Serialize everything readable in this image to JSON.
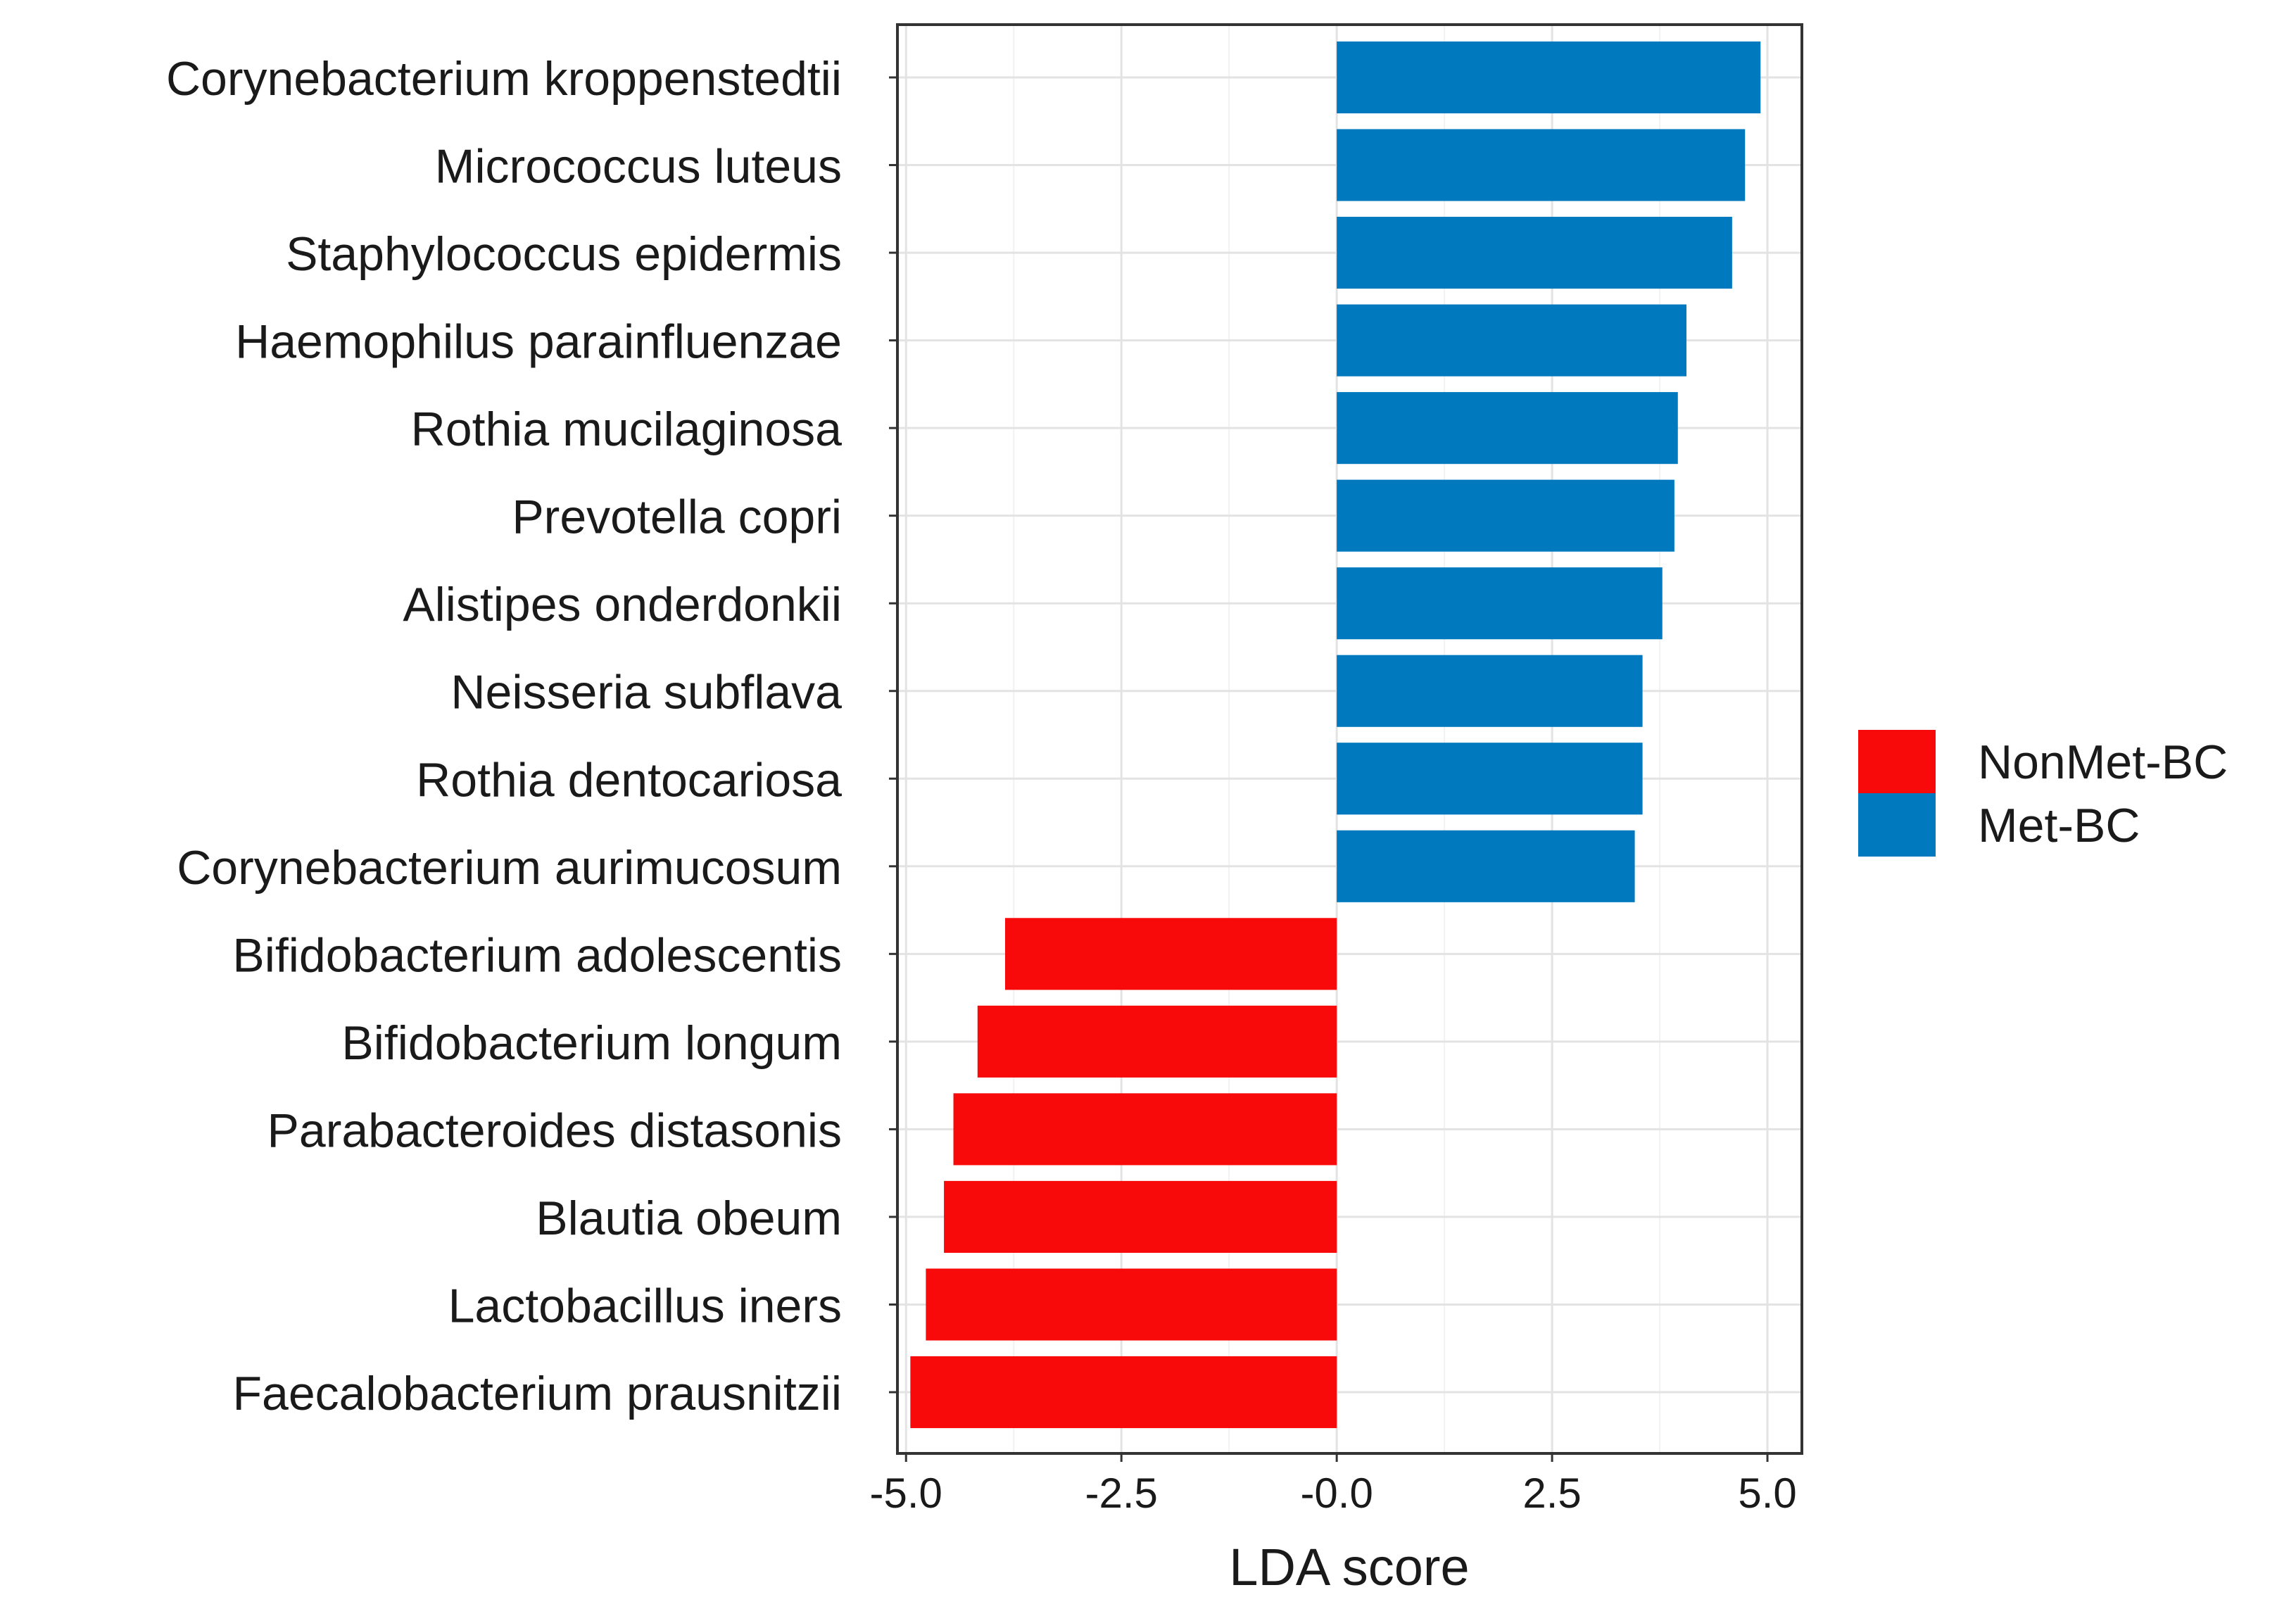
{
  "chart_data": {
    "type": "bar",
    "orientation": "horizontal",
    "title": "",
    "xlabel": "LDA score",
    "ylabel": "",
    "xlim": [
      -5.1,
      5.4
    ],
    "xticks": [
      -5.0,
      -2.5,
      0.0,
      2.5,
      5.0
    ],
    "xtick_labels": [
      "-5.0",
      "-2.5",
      "-0.0",
      "2.5",
      "5.0"
    ],
    "grid": true,
    "legend_position": "right",
    "colors": {
      "NonMet-BC": "#f80a0a",
      "Met-BC": "#0079be"
    },
    "legend": [
      {
        "name": "NonMet-BC",
        "color": "#f80a0a"
      },
      {
        "name": "Met-BC",
        "color": "#0079be"
      }
    ],
    "categories": [
      "Corynebacterium kroppenstedtii",
      "Micrococcus luteus",
      "Staphylococcus epidermis",
      "Haemophilus parainfluenzae",
      "Rothia mucilaginosa",
      "Prevotella copri",
      "Alistipes onderdonkii",
      "Neisseria subflava",
      "Rothia dentocariosa",
      "Corynebacterium aurimucosum",
      "Bifidobacterium adolescentis",
      "Bifidobacterium longum",
      "Parabacteroides distasonis",
      "Blautia obeum",
      "Lactobacillus iners",
      "Faecalobacterium prausnitzii"
    ],
    "values": [
      4.92,
      4.74,
      4.59,
      4.06,
      3.96,
      3.92,
      3.78,
      3.55,
      3.55,
      3.46,
      -3.85,
      -4.17,
      -4.45,
      -4.56,
      -4.77,
      -4.95
    ],
    "groups": [
      "Met-BC",
      "Met-BC",
      "Met-BC",
      "Met-BC",
      "Met-BC",
      "Met-BC",
      "Met-BC",
      "Met-BC",
      "Met-BC",
      "Met-BC",
      "NonMet-BC",
      "NonMet-BC",
      "NonMet-BC",
      "NonMet-BC",
      "NonMet-BC",
      "NonMet-BC"
    ]
  }
}
